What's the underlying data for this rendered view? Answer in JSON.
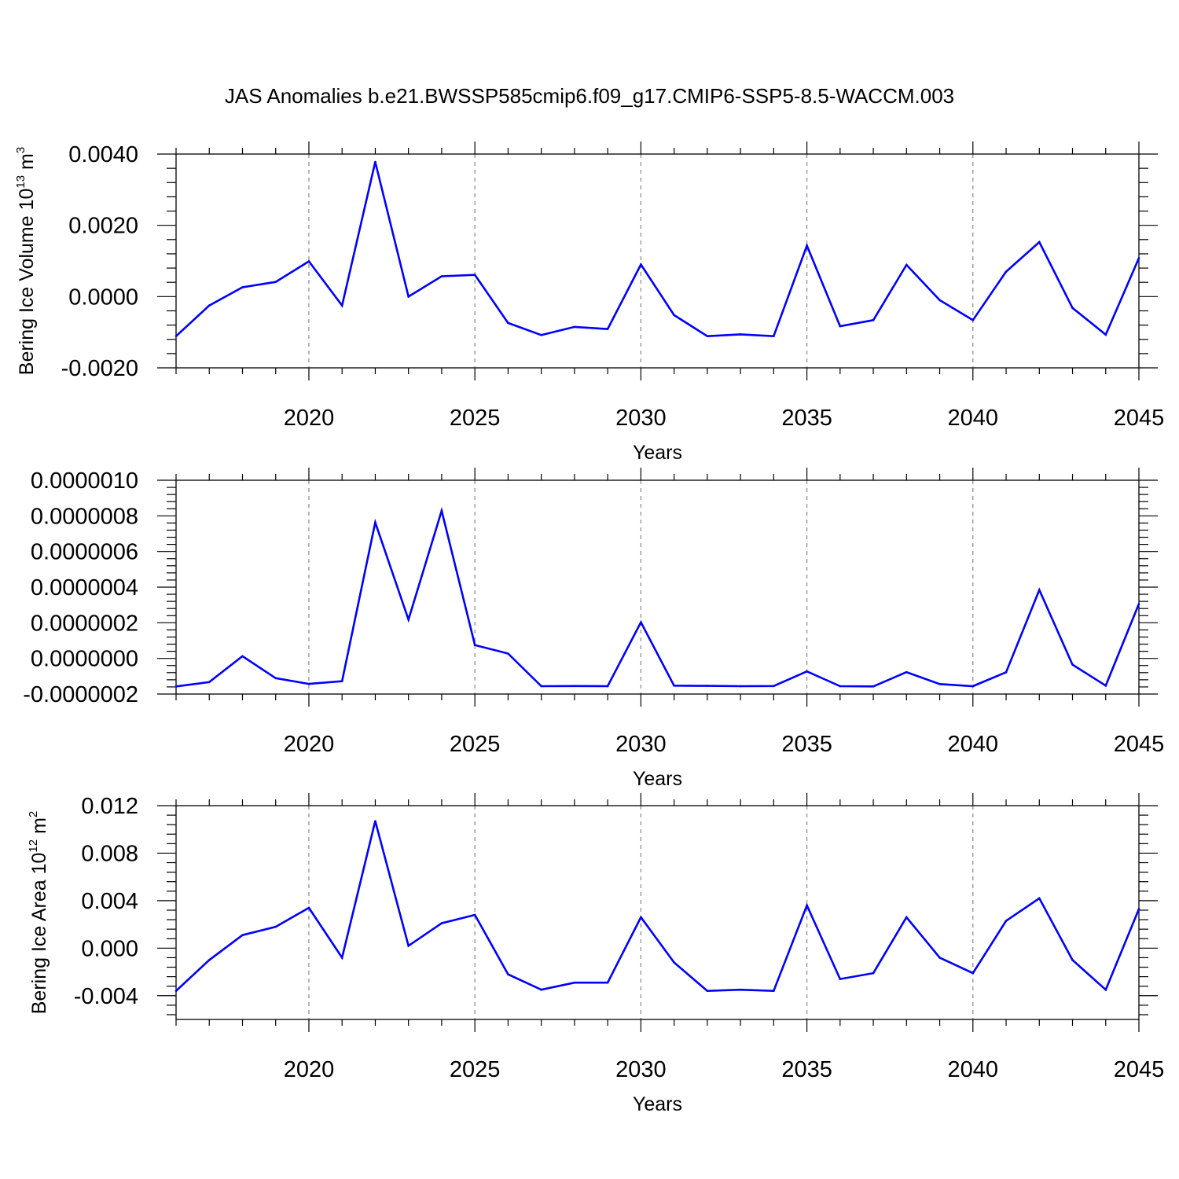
{
  "title": "JAS Anomalies b.e21.BWSSP585cmip6.f09_g17.CMIP6-SSP5-8.5-WACCM.003",
  "line_color": "#0000ff",
  "chart_data": [
    {
      "type": "line",
      "xlabel": "Years",
      "ylabel": {
        "text": "Bering Ice Volume 10",
        "sup": "13",
        "unit": " m",
        "unit_sup": "3"
      },
      "xlim": [
        2016,
        2045
      ],
      "ylim": [
        -0.002,
        0.004
      ],
      "xticks": [
        2020,
        2025,
        2030,
        2035,
        2040,
        2045
      ],
      "xtick_labels": [
        "2020",
        "2025",
        "2030",
        "2035",
        "2040",
        "2045"
      ],
      "yticks": [
        -0.002,
        0.0,
        0.002,
        0.004
      ],
      "ytick_labels": [
        "-0.0020",
        "0.0000",
        "0.0020",
        "0.0040"
      ],
      "grid": "x-dashed",
      "x": [
        2016,
        2017,
        2018,
        2019,
        2020,
        2021,
        2022,
        2023,
        2024,
        2025,
        2026,
        2027,
        2028,
        2029,
        2030,
        2031,
        2032,
        2033,
        2034,
        2035,
        2036,
        2037,
        2038,
        2039,
        2040,
        2041,
        2042,
        2043,
        2044,
        2045
      ],
      "values": [
        -0.00111,
        -0.00025,
        0.00026,
        0.00041,
        0.00099,
        -0.00025,
        0.00378,
        0.0,
        0.00057,
        0.00061,
        -0.00074,
        -0.00108,
        -0.00085,
        -0.00091,
        0.0009,
        -0.00052,
        -0.00111,
        -0.00106,
        -0.00111,
        0.00143,
        -0.00083,
        -0.00066,
        0.00089,
        -0.0001,
        -0.00066,
        0.0007,
        0.00153,
        -0.00032,
        -0.00107,
        0.00108
      ]
    },
    {
      "type": "line",
      "xlabel": "Years",
      "ylabel": null,
      "xlim": [
        2016,
        2045
      ],
      "ylim": [
        -2e-07,
        1e-06
      ],
      "xticks": [
        2020,
        2025,
        2030,
        2035,
        2040,
        2045
      ],
      "xtick_labels": [
        "2020",
        "2025",
        "2030",
        "2035",
        "2040",
        "2045"
      ],
      "yticks": [
        -2e-07,
        0.0,
        2e-07,
        4e-07,
        6e-07,
        8e-07,
        1e-06
      ],
      "ytick_labels": [
        "-0.0000002",
        "0.0000000",
        "0.0000002",
        "0.0000004",
        "0.0000006",
        "0.0000008",
        "0.0000010"
      ],
      "grid": "x-dashed",
      "x": [
        2016,
        2017,
        2018,
        2019,
        2020,
        2021,
        2022,
        2023,
        2024,
        2025,
        2026,
        2027,
        2028,
        2029,
        2030,
        2031,
        2032,
        2033,
        2034,
        2035,
        2036,
        2037,
        2038,
        2039,
        2040,
        2041,
        2042,
        2043,
        2044,
        2045
      ],
      "values": [
        -1.57e-07,
        -1.33e-07,
        1.2e-08,
        -1.11e-07,
        -1.43e-07,
        -1.28e-07,
        7.63e-07,
        2.18e-07,
        8.29e-07,
        7.5e-08,
        2.7e-08,
        -1.56e-07,
        -1.55e-07,
        -1.56e-07,
        2.03e-07,
        -1.53e-07,
        -1.54e-07,
        -1.56e-07,
        -1.55e-07,
        -7.3e-08,
        -1.56e-07,
        -1.57e-07,
        -7.7e-08,
        -1.44e-07,
        -1.56e-07,
        -7.8e-08,
        3.84e-07,
        -3.5e-08,
        -1.53e-07,
        3.06e-07
      ]
    },
    {
      "type": "line",
      "xlabel": "Years",
      "ylabel": {
        "text": "Bering Ice Area 10",
        "sup": "12",
        "unit": " m",
        "unit_sup": "2"
      },
      "xlim": [
        2016,
        2045
      ],
      "ylim": [
        -0.006,
        0.012
      ],
      "xticks": [
        2020,
        2025,
        2030,
        2035,
        2040,
        2045
      ],
      "xtick_labels": [
        "2020",
        "2025",
        "2030",
        "2035",
        "2040",
        "2045"
      ],
      "yticks": [
        -0.004,
        0.0,
        0.004,
        0.008,
        0.012
      ],
      "ytick_labels": [
        "-0.004",
        "0.000",
        "0.004",
        "0.008",
        "0.012"
      ],
      "grid": "x-dashed",
      "x": [
        2016,
        2017,
        2018,
        2019,
        2020,
        2021,
        2022,
        2023,
        2024,
        2025,
        2026,
        2027,
        2028,
        2029,
        2030,
        2031,
        2032,
        2033,
        2034,
        2035,
        2036,
        2037,
        2038,
        2039,
        2040,
        2041,
        2042,
        2043,
        2044,
        2045
      ],
      "values": [
        -0.0036,
        -0.001,
        0.0011,
        0.0018,
        0.0034,
        -0.0008,
        0.0107,
        0.0002,
        0.0021,
        0.0028,
        -0.0022,
        -0.0035,
        -0.0029,
        -0.0029,
        0.0026,
        -0.0012,
        -0.0036,
        -0.0035,
        -0.0036,
        0.0036,
        -0.0026,
        -0.0021,
        0.0026,
        -0.0008,
        -0.0021,
        0.0023,
        0.0042,
        -0.001,
        -0.0035,
        0.0033
      ]
    }
  ]
}
